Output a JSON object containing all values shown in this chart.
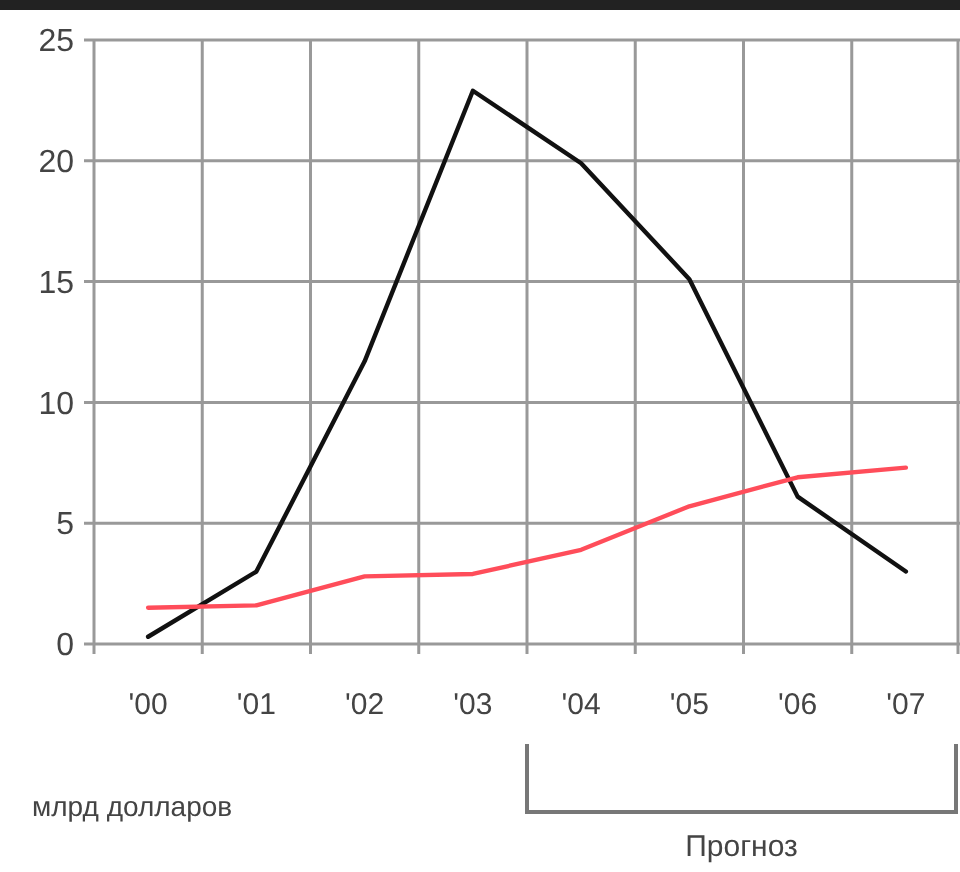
{
  "chart_data": {
    "type": "line",
    "categories": [
      "'00",
      "'01",
      "'02",
      "'03",
      "'04",
      "'05",
      "'06",
      "'07"
    ],
    "series": [
      {
        "color": "#111111",
        "values": [
          0.3,
          3,
          11.7,
          22.9,
          19.9,
          15.1,
          6.1,
          3
        ]
      },
      {
        "color": "#ff4d5a",
        "values": [
          1.5,
          1.6,
          2.8,
          2.9,
          3.9,
          5.7,
          6.9,
          7.3
        ]
      }
    ],
    "ylim": [
      0,
      25
    ],
    "yticks": [
      0,
      5,
      10,
      15,
      20,
      25
    ],
    "grid": true,
    "annotations": [
      "млрд долларов",
      "Прогноз"
    ]
  }
}
